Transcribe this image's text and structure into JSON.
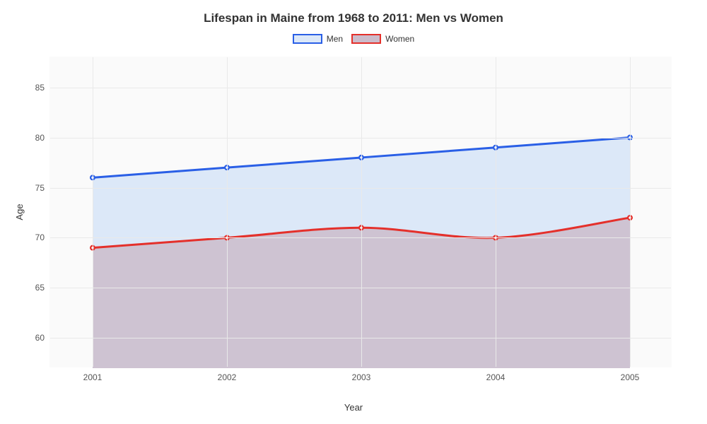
{
  "chart": {
    "type": "area-line",
    "title": "Lifespan in Maine from 1968 to 2011: Men vs Women",
    "title_fontsize": 17,
    "title_color": "#333333",
    "background_color": "#ffffff",
    "plot_background": "#fafafa",
    "grid_color": "#e9e9e9",
    "tick_fontsize": 12,
    "tick_color": "#555555",
    "axis_label_fontsize": 13,
    "axis_label_color": "#333333",
    "xlabel": "Year",
    "ylabel": "Age",
    "x_categories": [
      "2001",
      "2002",
      "2003",
      "2004",
      "2005"
    ],
    "y_ticks": [
      60,
      65,
      70,
      75,
      80,
      85
    ],
    "ylim": [
      57,
      88
    ],
    "line_width": 3,
    "marker_radius": 4,
    "marker_inner_radius": 1.7,
    "marker_inner_color": "#ffffff",
    "legend": {
      "fontsize": 12,
      "swatch_width": 42,
      "swatch_height": 14,
      "swatch_border_width": 2
    },
    "series": [
      {
        "name": "Men",
        "label": "Men",
        "stroke": "#2a5fe6",
        "fill": "#dce8f8",
        "fill_opacity": 1,
        "values": [
          76,
          77,
          78,
          79,
          80
        ]
      },
      {
        "name": "Women",
        "label": "Women",
        "stroke": "#e4302b",
        "fill": "#cbbccb",
        "fill_opacity": 0.85,
        "values": [
          69,
          70,
          71,
          70,
          72
        ]
      }
    ]
  }
}
